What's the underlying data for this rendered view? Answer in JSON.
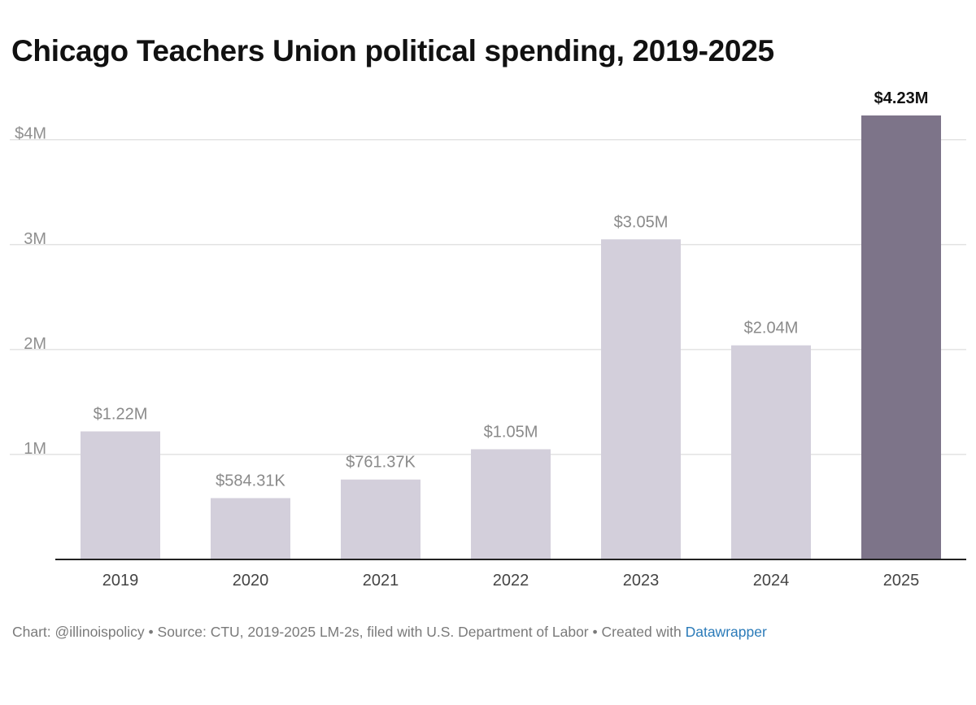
{
  "chart_data": {
    "type": "bar",
    "title": "Chicago Teachers Union political spending, 2019-2025",
    "xlabel": "",
    "ylabel": "",
    "categories": [
      "2019",
      "2020",
      "2021",
      "2022",
      "2023",
      "2024",
      "2025"
    ],
    "values": [
      1220000,
      584310,
      761370,
      1050000,
      3050000,
      2040000,
      4230000
    ],
    "value_labels": [
      "$1.22M",
      "$584.31K",
      "$761.37K",
      "$1.05M",
      "$3.05M",
      "$2.04M",
      "$4.23M"
    ],
    "highlight_index": 6,
    "ylim": [
      0,
      4230000
    ],
    "y_ticks": [
      {
        "value": 1000000,
        "label": "1M"
      },
      {
        "value": 2000000,
        "label": "2M"
      },
      {
        "value": 3000000,
        "label": "3M"
      },
      {
        "value": 4000000,
        "label": "$4M"
      }
    ],
    "grid": true,
    "colors": {
      "bar": "#d3cfdb",
      "highlight_bar": "#7d7489",
      "label": "#8a8a8a",
      "highlight_label": "#111111",
      "grid": "#e3e3e3",
      "axis": "#222222",
      "tick_label": "#8f8f8f",
      "category_label": "#444444"
    }
  },
  "footer": {
    "prefix": "Chart: @illinoispolicy • Source: CTU, 2019-2025 LM-2s, filed with U.S. Department of Labor • Created with ",
    "link_text": "Datawrapper"
  }
}
